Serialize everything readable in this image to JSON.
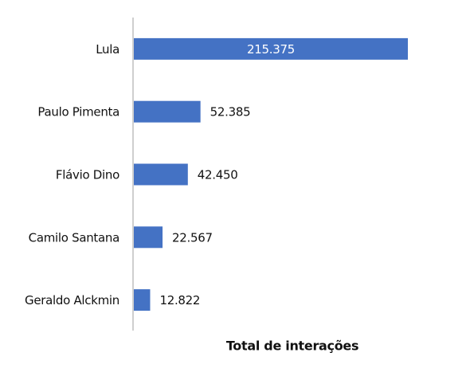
{
  "chart_data": {
    "type": "bar",
    "orientation": "horizontal",
    "x_label": "Total de interações",
    "categories": [
      "Lula",
      "Paulo Pimenta",
      "Flávio Dino",
      "Camilo Santana",
      "Geraldo Alckmin"
    ],
    "values": [
      215375,
      52385,
      42450,
      22567,
      12822
    ],
    "value_labels": [
      "215.375",
      "52.385",
      "42.450",
      "22.567",
      "12.822"
    ],
    "color": "#4472c4"
  }
}
